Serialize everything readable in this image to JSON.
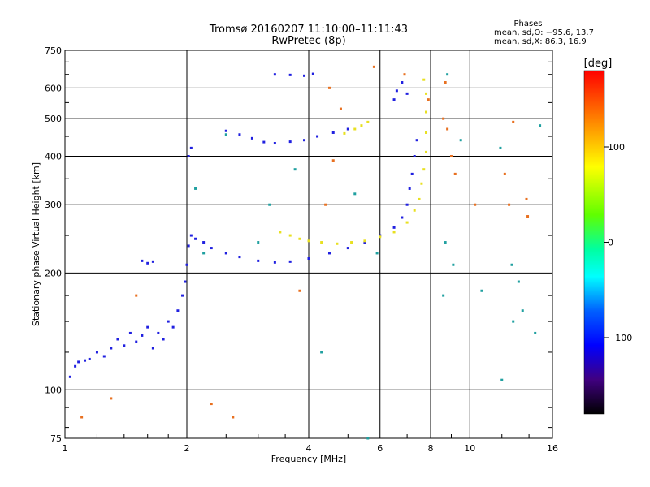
{
  "header": {
    "title_line1": "Tromsø 20160207 11:10:00–11:11:43",
    "title_line2": "RwPretec (8p)",
    "phases_title": "Phases",
    "phases_line1": "mean, sd,O: −95.6, 13.7",
    "phases_line2": "mean, sd,X:  86.3, 16.9"
  },
  "chart_data": {
    "type": "scatter",
    "xlabel": "Frequency [MHz]",
    "ylabel": "Stationary phase Virtual Height [km]",
    "x_scale": "log",
    "y_scale": "log",
    "xlim": [
      1,
      16
    ],
    "ylim": [
      75,
      750
    ],
    "x_ticks": [
      1,
      2,
      4,
      6,
      8,
      10,
      16
    ],
    "x_tick_labels": [
      "1",
      "2",
      "4",
      "6",
      "8",
      "10",
      "16"
    ],
    "y_ticks": [
      75,
      100,
      200,
      300,
      400,
      500,
      600,
      750
    ],
    "y_tick_labels": [
      "75",
      "100",
      "200",
      "300",
      "400",
      "500",
      "600",
      "750"
    ],
    "grid": true,
    "colorbar": {
      "label": "[deg]",
      "range": [
        -180,
        180
      ],
      "ticks": [
        100,
        0,
        -100
      ],
      "tick_labels": [
        "100",
        "0",
        "−100"
      ]
    },
    "series": [
      {
        "points": [
          [
            1.03,
            108
          ],
          [
            1.06,
            115
          ],
          [
            1.08,
            118
          ],
          [
            1.12,
            119
          ],
          [
            1.15,
            120
          ],
          [
            1.2,
            125
          ],
          [
            1.25,
            122
          ],
          [
            1.3,
            128
          ],
          [
            1.35,
            135
          ],
          [
            1.4,
            130
          ],
          [
            1.45,
            140
          ],
          [
            1.5,
            133
          ],
          [
            1.55,
            138
          ],
          [
            1.6,
            145
          ],
          [
            1.65,
            128
          ],
          [
            1.7,
            140
          ],
          [
            1.75,
            135
          ],
          [
            1.8,
            150
          ],
          [
            1.85,
            145
          ],
          [
            1.9,
            160
          ],
          [
            1.95,
            175
          ],
          [
            1.98,
            190
          ],
          [
            2.0,
            210
          ],
          [
            2.02,
            235
          ],
          [
            2.05,
            250
          ],
          [
            2.1,
            245
          ],
          [
            2.2,
            240
          ],
          [
            2.3,
            232
          ],
          [
            2.5,
            225
          ],
          [
            2.7,
            220
          ],
          [
            3.0,
            215
          ],
          [
            3.3,
            213
          ],
          [
            3.6,
            214
          ],
          [
            4.0,
            218
          ],
          [
            4.5,
            225
          ],
          [
            5.0,
            232
          ],
          [
            5.5,
            240
          ],
          [
            6.0,
            250
          ],
          [
            6.5,
            262
          ],
          [
            6.8,
            278
          ],
          [
            7.0,
            300
          ],
          [
            7.1,
            330
          ],
          [
            7.2,
            360
          ],
          [
            7.3,
            400
          ],
          [
            7.4,
            440
          ],
          [
            1.55,
            215
          ],
          [
            1.6,
            212
          ],
          [
            1.65,
            214
          ],
          [
            2.02,
            400
          ],
          [
            2.05,
            420
          ],
          [
            2.5,
            465
          ],
          [
            2.7,
            455
          ],
          [
            2.9,
            445
          ],
          [
            3.1,
            435
          ],
          [
            3.3,
            432
          ],
          [
            3.6,
            436
          ],
          [
            3.9,
            440
          ],
          [
            4.2,
            450
          ],
          [
            4.6,
            460
          ],
          [
            5.0,
            470
          ],
          [
            3.3,
            650
          ],
          [
            3.6,
            648
          ],
          [
            3.9,
            645
          ],
          [
            4.1,
            652
          ],
          [
            6.5,
            560
          ],
          [
            6.6,
            590
          ],
          [
            6.8,
            620
          ],
          [
            7.0,
            580
          ]
        ]
      },
      {
        "points": [
          [
            3.4,
            255
          ],
          [
            3.6,
            250
          ],
          [
            3.8,
            245
          ],
          [
            4.0,
            242
          ],
          [
            4.3,
            240
          ],
          [
            4.7,
            238
          ],
          [
            5.1,
            240
          ],
          [
            5.5,
            242
          ],
          [
            6.0,
            248
          ],
          [
            6.5,
            255
          ],
          [
            7.0,
            270
          ],
          [
            7.3,
            290
          ],
          [
            7.5,
            310
          ],
          [
            7.6,
            340
          ],
          [
            7.7,
            370
          ],
          [
            7.8,
            410
          ],
          [
            7.8,
            460
          ],
          [
            7.8,
            520
          ],
          [
            7.8,
            580
          ],
          [
            7.7,
            630
          ],
          [
            5.2,
            470
          ],
          [
            5.4,
            480
          ],
          [
            5.6,
            490
          ],
          [
            4.9,
            458
          ]
        ]
      },
      {
        "points": [
          [
            1.5,
            175
          ],
          [
            1.3,
            95
          ],
          [
            1.1,
            85
          ],
          [
            2.3,
            92
          ],
          [
            2.6,
            85
          ],
          [
            3.8,
            180
          ],
          [
            4.5,
            600
          ],
          [
            4.8,
            530
          ],
          [
            5.8,
            680
          ],
          [
            6.9,
            650
          ],
          [
            7.9,
            560
          ],
          [
            8.6,
            500
          ],
          [
            8.8,
            470
          ],
          [
            9.0,
            400
          ],
          [
            9.2,
            360
          ],
          [
            10.3,
            300
          ],
          [
            12.2,
            360
          ],
          [
            12.5,
            300
          ],
          [
            13.8,
            310
          ],
          [
            13.9,
            280
          ],
          [
            8.7,
            620
          ],
          [
            12.8,
            490
          ],
          [
            4.6,
            390
          ],
          [
            4.4,
            300
          ]
        ]
      },
      {
        "points": [
          [
            9.5,
            440
          ],
          [
            8.6,
            175
          ],
          [
            8.8,
            650
          ],
          [
            8.7,
            240
          ],
          [
            9.1,
            210
          ],
          [
            10.7,
            180
          ],
          [
            11.9,
            420
          ],
          [
            12.0,
            106
          ],
          [
            12.7,
            210
          ],
          [
            12.8,
            150
          ],
          [
            13.2,
            190
          ],
          [
            13.5,
            160
          ],
          [
            14.5,
            140
          ],
          [
            14.9,
            480
          ],
          [
            4.3,
            125
          ],
          [
            5.6,
            75
          ],
          [
            5.2,
            320
          ],
          [
            5.9,
            225
          ],
          [
            3.7,
            370
          ],
          [
            3.0,
            240
          ],
          [
            2.1,
            330
          ],
          [
            2.5,
            455
          ],
          [
            2.2,
            225
          ],
          [
            3.2,
            300
          ]
        ]
      }
    ]
  }
}
